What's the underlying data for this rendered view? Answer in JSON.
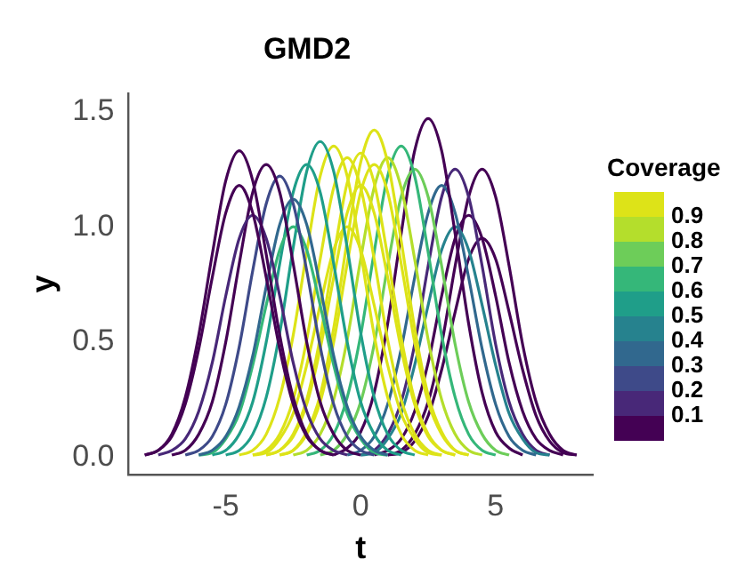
{
  "chart_data": {
    "type": "line",
    "title": "GMD2",
    "xlabel": "t",
    "ylabel": "y",
    "clabel": "Coverage",
    "clim": [
      0,
      1
    ],
    "cticks": [
      0.1,
      0.2,
      0.3,
      0.4,
      0.5,
      0.6,
      0.7,
      0.8,
      0.9
    ],
    "xlim": [
      -8.6,
      8.6
    ],
    "xticks": [
      -5,
      0,
      5
    ],
    "ylim": [
      -0.075,
      1.58
    ],
    "yticks": [
      {
        "value": 0,
        "label": "0.0"
      },
      {
        "value": 0.5,
        "label": "0.5"
      },
      {
        "value": 1,
        "label": "1.0"
      },
      {
        "value": 1.5,
        "label": "1.5"
      }
    ],
    "grid": false,
    "legend": false,
    "series": [
      {
        "color": "#440154",
        "x": [
          -8,
          -7.5,
          -7,
          -6.5,
          -6,
          -5.5,
          -5,
          -4.5,
          -4,
          -3.5,
          -3,
          -2.5,
          -2,
          -1.5,
          -1
        ],
        "values": [
          0.01,
          0.03,
          0.1,
          0.26,
          0.53,
          0.88,
          1.2,
          1.33,
          1.2,
          0.88,
          0.53,
          0.26,
          0.1,
          0.03,
          0.01
        ]
      },
      {
        "color": "#440154",
        "x": [
          -8,
          -7.5,
          -7,
          -6.5,
          -6,
          -5.5,
          -5,
          -4.5,
          -4,
          -3.5,
          -3,
          -2.5,
          -2,
          -1.5,
          -1
        ],
        "values": [
          0.01,
          0.03,
          0.09,
          0.23,
          0.47,
          0.78,
          1.06,
          1.18,
          1.06,
          0.78,
          0.47,
          0.23,
          0.09,
          0.03,
          0.01
        ]
      },
      {
        "color": "#482878",
        "x": [
          -7.5,
          -7,
          -6.5,
          -6,
          -5.5,
          -5,
          -4.5,
          -4,
          -3.5,
          -3,
          -2.5,
          -2,
          -1.5,
          -1,
          -0.5
        ],
        "values": [
          0.01,
          0.03,
          0.08,
          0.2,
          0.41,
          0.7,
          0.95,
          1.05,
          0.95,
          0.7,
          0.41,
          0.2,
          0.08,
          0.03,
          0.01
        ]
      },
      {
        "color": "#440154",
        "x": [
          -7,
          -6.5,
          -6,
          -5.5,
          -5,
          -4.5,
          -4,
          -3.5,
          -3,
          -2.5,
          -2,
          -1.5,
          -1,
          -0.5,
          0
        ],
        "values": [
          0.01,
          0.03,
          0.1,
          0.24,
          0.5,
          0.84,
          1.15,
          1.27,
          1.15,
          0.84,
          0.5,
          0.24,
          0.1,
          0.03,
          0.01
        ]
      },
      {
        "color": "#3e4a89",
        "x": [
          -6.5,
          -6,
          -5.5,
          -5,
          -4.5,
          -4,
          -3.5,
          -3,
          -2.5,
          -2,
          -1.5,
          -1,
          -0.5,
          0,
          0.5
        ],
        "values": [
          0.01,
          0.03,
          0.09,
          0.23,
          0.48,
          0.81,
          1.1,
          1.22,
          1.1,
          0.81,
          0.48,
          0.23,
          0.09,
          0.03,
          0.01
        ]
      },
      {
        "color": "#31688e",
        "x": [
          -6,
          -5.5,
          -5,
          -4.5,
          -4,
          -3.5,
          -3,
          -2.5,
          -2,
          -1.5,
          -1,
          -0.5,
          0,
          0.5,
          1
        ],
        "values": [
          0.01,
          0.03,
          0.09,
          0.22,
          0.44,
          0.74,
          1.01,
          1.12,
          1.01,
          0.74,
          0.44,
          0.22,
          0.09,
          0.03,
          0.01
        ]
      },
      {
        "color": "#35b779",
        "x": [
          -6,
          -5.5,
          -5,
          -4.5,
          -4,
          -3.5,
          -3,
          -2.5,
          -2,
          -1.5,
          -1,
          -0.5,
          0,
          0.5,
          1
        ],
        "values": [
          0.01,
          0.02,
          0.08,
          0.19,
          0.4,
          0.66,
          0.9,
          1,
          0.9,
          0.66,
          0.4,
          0.19,
          0.08,
          0.02,
          0.01
        ]
      },
      {
        "color": "#1f9e89",
        "x": [
          -5.5,
          -5,
          -4.5,
          -4,
          -3.5,
          -3,
          -2.5,
          -2,
          -1.5,
          -1,
          -0.5,
          0,
          0.5,
          1,
          1.5
        ],
        "values": [
          0.01,
          0.03,
          0.1,
          0.24,
          0.5,
          0.84,
          1.15,
          1.27,
          1.15,
          0.84,
          0.5,
          0.24,
          0.1,
          0.03,
          0.01
        ]
      },
      {
        "color": "#1f9e89",
        "x": [
          -5,
          -4.5,
          -4,
          -3.5,
          -3,
          -2.5,
          -2,
          -1.5,
          -1,
          -0.5,
          0,
          0.5,
          1,
          1.5,
          2
        ],
        "values": [
          0.01,
          0.03,
          0.1,
          0.26,
          0.54,
          0.91,
          1.24,
          1.37,
          1.24,
          0.91,
          0.54,
          0.26,
          0.1,
          0.03,
          0.01
        ]
      },
      {
        "color": "#dde318",
        "x": [
          -4.5,
          -4,
          -3.5,
          -3,
          -2.5,
          -2,
          -1.5,
          -1,
          -0.5,
          0,
          0.5,
          1,
          1.5,
          2,
          2.5
        ],
        "values": [
          0.01,
          0.03,
          0.1,
          0.26,
          0.53,
          0.89,
          1.22,
          1.35,
          1.22,
          0.89,
          0.53,
          0.26,
          0.1,
          0.03,
          0.01
        ]
      },
      {
        "color": "#dde318",
        "x": [
          -4,
          -3.5,
          -3,
          -2.5,
          -2,
          -1.5,
          -1,
          -0.5,
          0,
          0.5,
          1,
          1.5,
          2,
          2.5,
          3
        ],
        "values": [
          0.01,
          0.03,
          0.1,
          0.25,
          0.51,
          0.86,
          1.17,
          1.3,
          1.17,
          0.86,
          0.51,
          0.25,
          0.1,
          0.03,
          0.01
        ]
      },
      {
        "color": "#dde318",
        "x": [
          -4,
          -3.5,
          -3,
          -2.5,
          -2,
          -1.5,
          -1,
          -0.5,
          0,
          0.5,
          1,
          1.5,
          2,
          2.5,
          3
        ],
        "values": [
          0.01,
          0.02,
          0.08,
          0.19,
          0.4,
          0.66,
          0.9,
          1,
          0.9,
          0.66,
          0.4,
          0.19,
          0.08,
          0.02,
          0.01
        ]
      },
      {
        "color": "#dde318",
        "x": [
          -3.5,
          -3,
          -2.5,
          -2,
          -1.5,
          -1,
          -0.5,
          0,
          0.5,
          1,
          1.5,
          2,
          2.5,
          3,
          3.5
        ],
        "values": [
          0.01,
          0.03,
          0.1,
          0.25,
          0.52,
          0.87,
          1.19,
          1.32,
          1.19,
          0.87,
          0.52,
          0.25,
          0.1,
          0.03,
          0.01
        ]
      },
      {
        "color": "#dde318",
        "x": [
          -3.5,
          -3,
          -2.5,
          -2,
          -1.5,
          -1,
          -0.5,
          0,
          0.5,
          1,
          1.5,
          2,
          2.5,
          3,
          3.5
        ],
        "values": [
          0.01,
          0.03,
          0.09,
          0.23,
          0.47,
          0.78,
          1.06,
          1.18,
          1.06,
          0.78,
          0.47,
          0.23,
          0.09,
          0.03,
          0.01
        ]
      },
      {
        "color": "#dde318",
        "x": [
          -3,
          -2.5,
          -2,
          -1.5,
          -1,
          -0.5,
          0,
          0.5,
          1,
          1.5,
          2,
          2.5,
          3,
          3.5,
          4
        ],
        "values": [
          0.01,
          0.03,
          0.11,
          0.27,
          0.56,
          0.94,
          1.28,
          1.42,
          1.28,
          0.94,
          0.56,
          0.27,
          0.11,
          0.03,
          0.01
        ]
      },
      {
        "color": "#dde318",
        "x": [
          -3,
          -2.5,
          -2,
          -1.5,
          -1,
          -0.5,
          0,
          0.5,
          1,
          1.5,
          2,
          2.5,
          3,
          3.5,
          4
        ],
        "values": [
          0.01,
          0.03,
          0.1,
          0.24,
          0.5,
          0.84,
          1.15,
          1.27,
          1.15,
          0.84,
          0.5,
          0.24,
          0.1,
          0.03,
          0.01
        ]
      },
      {
        "color": "#b4de2c",
        "x": [
          -2.5,
          -2,
          -1.5,
          -1,
          -0.5,
          0,
          0.5,
          1,
          1.5,
          2,
          2.5,
          3,
          3.5,
          4,
          4.5
        ],
        "values": [
          0.01,
          0.03,
          0.1,
          0.25,
          0.51,
          0.86,
          1.17,
          1.3,
          1.17,
          0.86,
          0.51,
          0.25,
          0.1,
          0.03,
          0.01
        ]
      },
      {
        "color": "#35b779",
        "x": [
          -2,
          -1.5,
          -1,
          -0.5,
          0,
          0.5,
          1,
          1.5,
          2,
          2.5,
          3,
          3.5,
          4,
          4.5,
          5
        ],
        "values": [
          0.01,
          0.03,
          0.1,
          0.26,
          0.53,
          0.89,
          1.22,
          1.35,
          1.22,
          0.89,
          0.53,
          0.26,
          0.1,
          0.03,
          0.01
        ]
      },
      {
        "color": "#6dcd59",
        "x": [
          -1.5,
          -1,
          -0.5,
          0,
          0.5,
          1,
          1.5,
          2,
          2.5,
          3,
          3.5,
          4,
          4.5,
          5,
          5.5
        ],
        "values": [
          0.01,
          0.03,
          0.1,
          0.24,
          0.49,
          0.83,
          1.13,
          1.25,
          1.13,
          0.83,
          0.49,
          0.24,
          0.1,
          0.03,
          0.01
        ]
      },
      {
        "color": "#440154",
        "x": [
          -1,
          -0.5,
          0,
          0.5,
          1,
          1.5,
          2,
          2.5,
          3,
          3.5,
          4,
          4.5,
          5,
          5.5,
          6
        ],
        "values": [
          0.01,
          0.04,
          0.11,
          0.28,
          0.58,
          0.97,
          1.33,
          1.47,
          1.33,
          0.97,
          0.58,
          0.28,
          0.11,
          0.04,
          0.01
        ]
      },
      {
        "color": "#31688e",
        "x": [
          -0.5,
          0,
          0.5,
          1,
          1.5,
          2,
          2.5,
          3,
          3.5,
          4,
          4.5,
          5,
          5.5,
          6,
          6.5
        ],
        "values": [
          0.01,
          0.03,
          0.09,
          0.23,
          0.47,
          0.78,
          1.06,
          1.18,
          1.06,
          0.78,
          0.47,
          0.23,
          0.09,
          0.03,
          0.01
        ]
      },
      {
        "color": "#26828e",
        "x": [
          0,
          0.5,
          1,
          1.5,
          2,
          2.5,
          3,
          3.5,
          4,
          4.5,
          5,
          5.5,
          6,
          6.5,
          7
        ],
        "values": [
          0.01,
          0.02,
          0.08,
          0.19,
          0.4,
          0.66,
          0.9,
          1,
          0.9,
          0.66,
          0.4,
          0.19,
          0.08,
          0.02,
          0.01
        ]
      },
      {
        "color": "#482878",
        "x": [
          0,
          0.5,
          1,
          1.5,
          2,
          2.5,
          3,
          3.5,
          4,
          4.5,
          5,
          5.5,
          6,
          6.5,
          7
        ],
        "values": [
          0.01,
          0.03,
          0.1,
          0.24,
          0.49,
          0.83,
          1.13,
          1.25,
          1.13,
          0.83,
          0.49,
          0.24,
          0.1,
          0.03,
          0.01
        ]
      },
      {
        "color": "#440154",
        "x": [
          0.5,
          1,
          1.5,
          2,
          2.5,
          3,
          3.5,
          4,
          4.5,
          5,
          5.5,
          6,
          6.5,
          7,
          7.5
        ],
        "values": [
          0.01,
          0.03,
          0.08,
          0.2,
          0.41,
          0.7,
          0.95,
          1.05,
          0.95,
          0.7,
          0.41,
          0.2,
          0.08,
          0.03,
          0.01
        ]
      },
      {
        "color": "#440154",
        "x": [
          1,
          1.5,
          2,
          2.5,
          3,
          3.5,
          4,
          4.5,
          5,
          5.5,
          6,
          6.5,
          7,
          7.5,
          8
        ],
        "values": [
          0.01,
          0.03,
          0.1,
          0.24,
          0.49,
          0.83,
          1.13,
          1.25,
          1.13,
          0.83,
          0.49,
          0.24,
          0.1,
          0.03,
          0.01
        ]
      },
      {
        "color": "#440154",
        "x": [
          1,
          1.5,
          2,
          2.5,
          3,
          3.5,
          4,
          4.5,
          5,
          5.5,
          6,
          6.5,
          7,
          7.5,
          8
        ],
        "values": [
          0.01,
          0.02,
          0.07,
          0.18,
          0.38,
          0.63,
          0.86,
          0.95,
          0.86,
          0.63,
          0.38,
          0.18,
          0.07,
          0.02,
          0.01
        ]
      }
    ]
  }
}
